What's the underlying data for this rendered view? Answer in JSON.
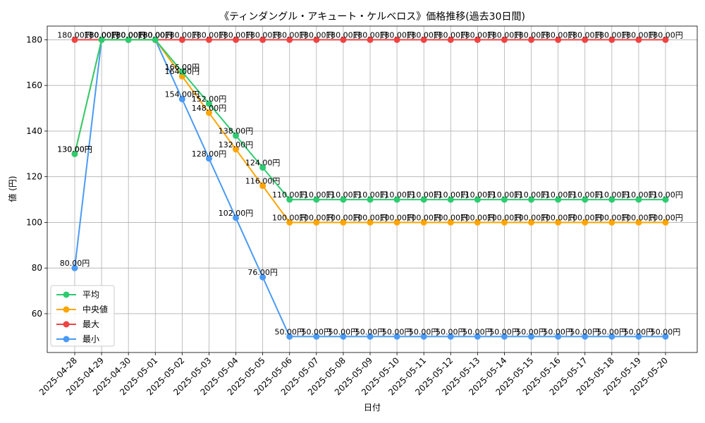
{
  "chart_data": {
    "type": "line",
    "title": "《ティンダングル・アキュート・ケルベロス》価格推移(過去30日間)",
    "xlabel": "日付",
    "ylabel": "値 (円)",
    "ylim": [
      43,
      186
    ],
    "yticks": [
      60,
      80,
      100,
      120,
      140,
      160,
      180
    ],
    "grid": true,
    "legend_position": "lower-left",
    "label_suffix": "円",
    "categories": [
      "2025-04-28",
      "2025-04-29",
      "2025-04-30",
      "2025-05-01",
      "2025-05-02",
      "2025-05-03",
      "2025-05-04",
      "2025-05-05",
      "2025-05-06",
      "2025-05-07",
      "2025-05-08",
      "2025-05-09",
      "2025-05-10",
      "2025-05-11",
      "2025-05-12",
      "2025-05-13",
      "2025-05-14",
      "2025-05-15",
      "2025-05-16",
      "2025-05-17",
      "2025-05-18",
      "2025-05-19",
      "2025-05-20"
    ],
    "series": [
      {
        "name": "平均",
        "color": "#2ecc71",
        "label_side": "left",
        "values": [
          130,
          180,
          180,
          180,
          166,
          152,
          138,
          124,
          110,
          110,
          110,
          110,
          110,
          110,
          110,
          110,
          110,
          110,
          110,
          110,
          110,
          110,
          110
        ]
      },
      {
        "name": "中央値",
        "color": "#ffa500",
        "label_side": "left",
        "values": [
          130,
          180,
          180,
          180,
          164,
          148,
          132,
          116,
          100,
          100,
          100,
          100,
          100,
          100,
          100,
          100,
          100,
          100,
          100,
          100,
          100,
          100,
          100
        ]
      },
      {
        "name": "最大",
        "color": "#ef4444",
        "label_side": "left",
        "values": [
          180,
          180,
          180,
          180,
          180,
          180,
          180,
          180,
          180,
          180,
          180,
          180,
          180,
          180,
          180,
          180,
          180,
          180,
          180,
          180,
          180,
          180,
          180
        ]
      },
      {
        "name": "最小",
        "color": "#4a9af5",
        "label_side": "left",
        "values": [
          80,
          180,
          180,
          180,
          154,
          128,
          102,
          76,
          50,
          50,
          50,
          50,
          50,
          50,
          50,
          50,
          50,
          50,
          50,
          50,
          50,
          50,
          50
        ]
      }
    ]
  }
}
